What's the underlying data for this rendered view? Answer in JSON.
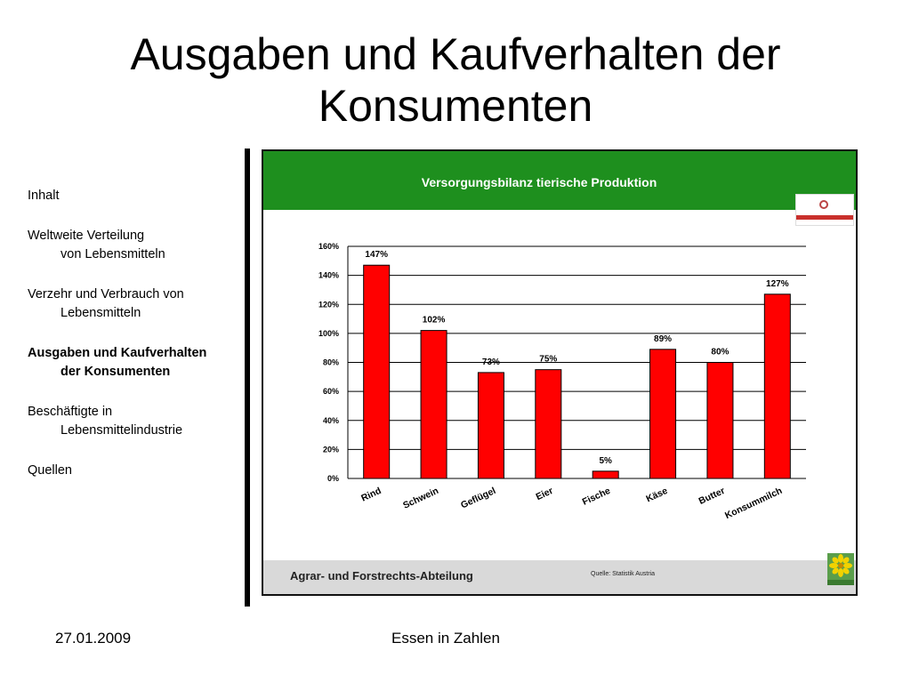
{
  "title": "Ausgaben und Kaufverhalten der Konsumenten",
  "nav": [
    {
      "line1": "Inhalt",
      "line2": ""
    },
    {
      "line1": "Weltweite Verteilung",
      "line2": "von Lebensmitteln"
    },
    {
      "line1": "Verzehr und Verbrauch von",
      "line2": "Lebensmitteln"
    },
    {
      "line1": "Ausgaben und Kaufverhalten",
      "line2": "der Konsumenten",
      "active": true
    },
    {
      "line1": "Beschäftigte in",
      "line2": "Lebensmittelindustrie"
    },
    {
      "line1": "Quellen",
      "line2": ""
    }
  ],
  "figure": {
    "header_title": "Versorgungsbilanz tierische Produktion",
    "footer_title": "Agrar- und Forstrechts-Abteilung",
    "source": "Quelle: Statistik Austria",
    "colors": {
      "header": "#1e8f1e",
      "footer": "#d9d9d9",
      "bar": "#ff0000"
    }
  },
  "chart_data": {
    "type": "bar",
    "title": "Versorgungsbilanz tierische Produktion",
    "categories": [
      "Rind",
      "Schwein",
      "Geflügel",
      "Eier",
      "Fische",
      "Käse",
      "Butter",
      "Konsummilch"
    ],
    "values": [
      147,
      102,
      73,
      75,
      5,
      89,
      80,
      127
    ],
    "data_labels": [
      "147%",
      "102%",
      "73%",
      "75%",
      "5%",
      "89%",
      "80%",
      "127%"
    ],
    "y_ticks": [
      "0%",
      "20%",
      "40%",
      "60%",
      "80%",
      "100%",
      "120%",
      "140%",
      "160%"
    ],
    "ylim": [
      0,
      160
    ],
    "xlabel": "",
    "ylabel": "",
    "grid": true,
    "bar_color": "#ff0000"
  },
  "footer": {
    "date": "27.01.2009",
    "center": "Essen in Zahlen"
  }
}
